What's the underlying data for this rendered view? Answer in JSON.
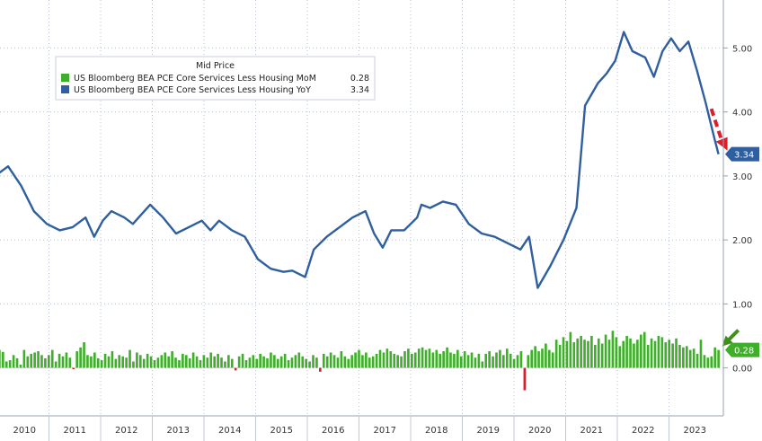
{
  "chart_data": {
    "type": "line",
    "legend": {
      "title": "Mid Price",
      "placement": "top-left",
      "entries": [
        {
          "label": "US Bloomberg BEA PCE Core Services Less Housing MoM",
          "value": "0.28",
          "color": "#3fae2a"
        },
        {
          "label": "US Bloomberg BEA PCE Core Services Less Housing YoY",
          "value": "3.34",
          "color": "#2f5f9e"
        }
      ]
    },
    "y_axis": {
      "range": [
        -0.75,
        5.75
      ],
      "ticks": [
        "0.00",
        "1.00",
        "2.00",
        "3.00",
        "4.00",
        "5.00"
      ],
      "tick_values": [
        0,
        1,
        2,
        3,
        4,
        5
      ],
      "side": "right",
      "grid": true
    },
    "x_axis": {
      "start": "2010-01",
      "end": "2023-12",
      "year_labels": [
        "2010",
        "2011",
        "2012",
        "2013",
        "2014",
        "2015",
        "2016",
        "2017",
        "2018",
        "2019",
        "2020",
        "2021",
        "2022",
        "2023"
      ]
    },
    "last_value_labels": [
      {
        "text": "3.34",
        "series": "yoy",
        "color": "#2f5f9e"
      },
      {
        "text": "0.28",
        "series": "mom",
        "color": "#3fae2a"
      }
    ],
    "series": [
      {
        "name": "US Bloomberg BEA PCE Core Services Less Housing YoY",
        "id": "yoy",
        "style": "line",
        "color": "#2f5f9e",
        "points": [
          [
            "2010-01",
            3.05
          ],
          [
            "2010-03",
            3.15
          ],
          [
            "2010-06",
            2.85
          ],
          [
            "2010-09",
            2.45
          ],
          [
            "2010-12",
            2.25
          ],
          [
            "2011-03",
            2.15
          ],
          [
            "2011-06",
            2.2
          ],
          [
            "2011-09",
            2.35
          ],
          [
            "2011-11",
            2.05
          ],
          [
            "2012-01",
            2.3
          ],
          [
            "2012-03",
            2.45
          ],
          [
            "2012-06",
            2.35
          ],
          [
            "2012-08",
            2.25
          ],
          [
            "2012-10",
            2.4
          ],
          [
            "2012-12",
            2.55
          ],
          [
            "2013-03",
            2.35
          ],
          [
            "2013-06",
            2.1
          ],
          [
            "2013-09",
            2.2
          ],
          [
            "2013-12",
            2.3
          ],
          [
            "2014-02",
            2.15
          ],
          [
            "2014-04",
            2.3
          ],
          [
            "2014-07",
            2.15
          ],
          [
            "2014-10",
            2.05
          ],
          [
            "2015-01",
            1.7
          ],
          [
            "2015-04",
            1.55
          ],
          [
            "2015-07",
            1.5
          ],
          [
            "2015-09",
            1.52
          ],
          [
            "2015-12",
            1.42
          ],
          [
            "2016-02",
            1.85
          ],
          [
            "2016-05",
            2.05
          ],
          [
            "2016-08",
            2.2
          ],
          [
            "2016-11",
            2.35
          ],
          [
            "2017-02",
            2.45
          ],
          [
            "2017-04",
            2.1
          ],
          [
            "2017-06",
            1.88
          ],
          [
            "2017-08",
            2.15
          ],
          [
            "2017-11",
            2.15
          ],
          [
            "2018-02",
            2.35
          ],
          [
            "2018-03",
            2.55
          ],
          [
            "2018-05",
            2.5
          ],
          [
            "2018-08",
            2.6
          ],
          [
            "2018-11",
            2.55
          ],
          [
            "2019-02",
            2.25
          ],
          [
            "2019-05",
            2.1
          ],
          [
            "2019-08",
            2.05
          ],
          [
            "2019-11",
            1.95
          ],
          [
            "2020-02",
            1.85
          ],
          [
            "2020-04",
            2.05
          ],
          [
            "2020-06",
            1.25
          ],
          [
            "2020-09",
            1.6
          ],
          [
            "2020-12",
            2.0
          ],
          [
            "2021-03",
            2.5
          ],
          [
            "2021-05",
            4.1
          ],
          [
            "2021-08",
            4.45
          ],
          [
            "2021-10",
            4.6
          ],
          [
            "2021-12",
            4.8
          ],
          [
            "2022-02",
            5.25
          ],
          [
            "2022-04",
            4.95
          ],
          [
            "2022-07",
            4.85
          ],
          [
            "2022-09",
            4.55
          ],
          [
            "2022-11",
            4.95
          ],
          [
            "2023-01",
            5.15
          ],
          [
            "2023-03",
            4.95
          ],
          [
            "2023-05",
            5.1
          ],
          [
            "2023-07",
            4.65
          ],
          [
            "2023-09",
            4.15
          ],
          [
            "2023-11",
            3.6
          ],
          [
            "2023-12",
            3.34
          ]
        ]
      },
      {
        "name": "US Bloomberg BEA PCE Core Services Less Housing MoM",
        "id": "mom",
        "style": "bar",
        "color": "#3fae2a",
        "negative_color": "#d9202a",
        "values": [
          0.28,
          0.25,
          0.1,
          0.12,
          0.2,
          0.15,
          0.05,
          0.28,
          0.18,
          0.22,
          0.24,
          0.26,
          0.2,
          0.15,
          0.2,
          0.28,
          0.1,
          0.22,
          0.18,
          0.24,
          0.16,
          -0.02,
          0.26,
          0.32,
          0.4,
          0.2,
          0.18,
          0.24,
          0.15,
          0.12,
          0.22,
          0.18,
          0.26,
          0.14,
          0.2,
          0.18,
          0.16,
          0.28,
          0.1,
          0.24,
          0.2,
          0.14,
          0.22,
          0.18,
          0.12,
          0.16,
          0.2,
          0.24,
          0.18,
          0.26,
          0.16,
          0.12,
          0.22,
          0.2,
          0.15,
          0.24,
          0.18,
          0.12,
          0.2,
          0.16,
          0.24,
          0.18,
          0.22,
          0.16,
          0.1,
          0.2,
          0.14,
          -0.04,
          0.18,
          0.22,
          0.12,
          0.16,
          0.2,
          0.14,
          0.22,
          0.18,
          0.15,
          0.24,
          0.2,
          0.14,
          0.18,
          0.22,
          0.12,
          0.16,
          0.2,
          0.24,
          0.18,
          0.14,
          0.1,
          0.2,
          0.16,
          -0.06,
          0.22,
          0.18,
          0.24,
          0.2,
          0.16,
          0.26,
          0.18,
          0.14,
          0.2,
          0.24,
          0.28,
          0.2,
          0.24,
          0.16,
          0.18,
          0.22,
          0.28,
          0.24,
          0.3,
          0.26,
          0.22,
          0.2,
          0.18,
          0.26,
          0.3,
          0.22,
          0.24,
          0.3,
          0.32,
          0.28,
          0.3,
          0.24,
          0.28,
          0.22,
          0.26,
          0.32,
          0.24,
          0.22,
          0.28,
          0.18,
          0.26,
          0.2,
          0.24,
          0.16,
          0.22,
          0.1,
          0.22,
          0.26,
          0.18,
          0.24,
          0.28,
          0.2,
          0.3,
          0.22,
          0.14,
          0.2,
          0.26,
          -0.35,
          0.2,
          0.28,
          0.34,
          0.26,
          0.3,
          0.38,
          0.28,
          0.24,
          0.44,
          0.36,
          0.48,
          0.42,
          0.56,
          0.4,
          0.46,
          0.5,
          0.44,
          0.42,
          0.5,
          0.36,
          0.46,
          0.38,
          0.52,
          0.44,
          0.58,
          0.48,
          0.34,
          0.42,
          0.5,
          0.46,
          0.38,
          0.44,
          0.52,
          0.56,
          0.36,
          0.46,
          0.42,
          0.5,
          0.48,
          0.4,
          0.44,
          0.38,
          0.46,
          0.36,
          0.32,
          0.34,
          0.28,
          0.3,
          0.22,
          0.44,
          0.2,
          0.16,
          0.18,
          0.32,
          0.28
        ]
      }
    ]
  }
}
